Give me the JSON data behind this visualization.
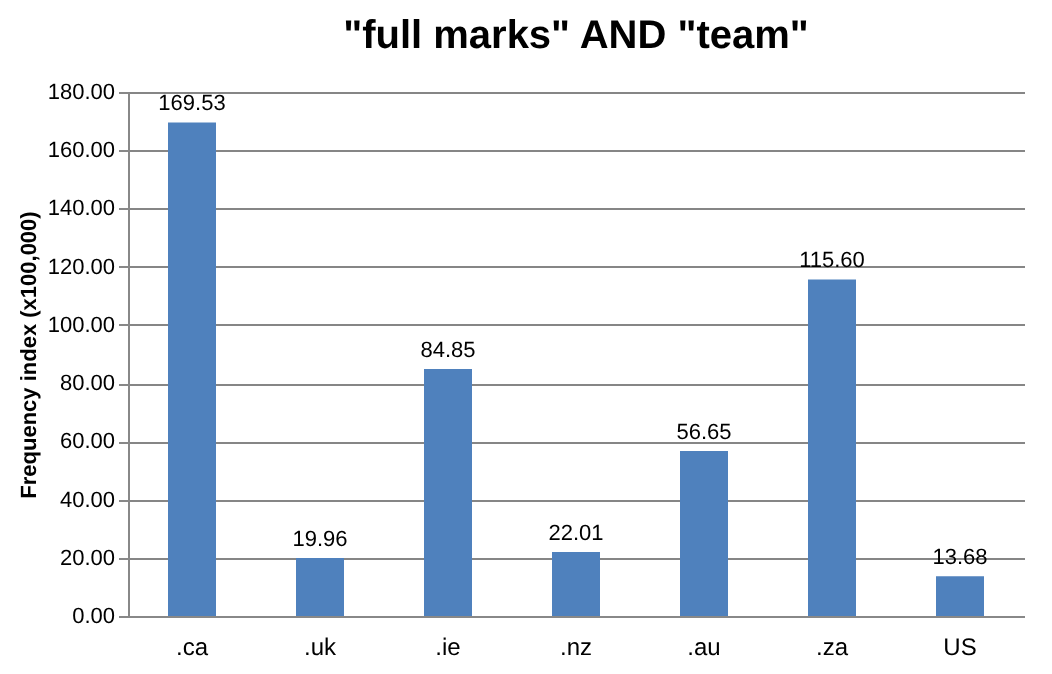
{
  "chart_data": {
    "type": "bar",
    "title": "\"full marks\" AND \"team\"",
    "ylabel": "Frequency index (x100,000)",
    "categories": [
      ".ca",
      ".uk",
      ".ie",
      ".nz",
      ".au",
      ".za",
      "US"
    ],
    "values": [
      169.53,
      19.96,
      84.85,
      22.01,
      56.65,
      115.6,
      13.68
    ],
    "value_labels": [
      "169.53",
      "19.96",
      "84.85",
      "22.01",
      "56.65",
      "115.60",
      "13.68"
    ],
    "color": "#4f81bd",
    "ylim": [
      0,
      180
    ],
    "yticks": [
      {
        "value": 0,
        "label": "0.00"
      },
      {
        "value": 20,
        "label": "20.00"
      },
      {
        "value": 40,
        "label": "40.00"
      },
      {
        "value": 60,
        "label": "60.00"
      },
      {
        "value": 80,
        "label": "80.00"
      },
      {
        "value": 100,
        "label": "100.00"
      },
      {
        "value": 120,
        "label": "120.00"
      },
      {
        "value": 140,
        "label": "140.00"
      },
      {
        "value": 160,
        "label": "160.00"
      },
      {
        "value": 180,
        "label": "180.00"
      }
    ],
    "grid": "y"
  }
}
